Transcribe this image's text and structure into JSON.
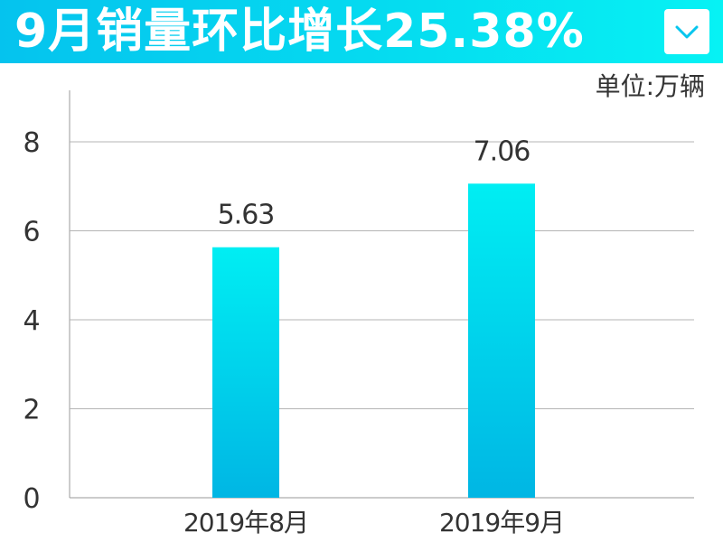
{
  "header": {
    "title": "9月销量环比增长25.38%",
    "dropdown_icon": "chevron-down-icon"
  },
  "colors": {
    "banner_start": "#05c3ee",
    "banner_end": "#06f2f4",
    "bar_top": "#00eef3",
    "bar_bottom": "#00b6e4",
    "gridline": "#b5b5b5",
    "axis": "#999999",
    "text": "#333333"
  },
  "chart_data": {
    "type": "bar",
    "title": "9月销量环比增长25.38%",
    "unit": "单位:万辆",
    "categories": [
      "2019年8月",
      "2019年9月"
    ],
    "values": [
      5.63,
      7.06
    ],
    "value_labels": [
      "5.63",
      "7.06"
    ],
    "ylim": [
      0,
      8
    ],
    "yticks": [
      0,
      2,
      4,
      6,
      8
    ],
    "xlabel": "",
    "ylabel": "",
    "grid": true,
    "legend": "none"
  }
}
